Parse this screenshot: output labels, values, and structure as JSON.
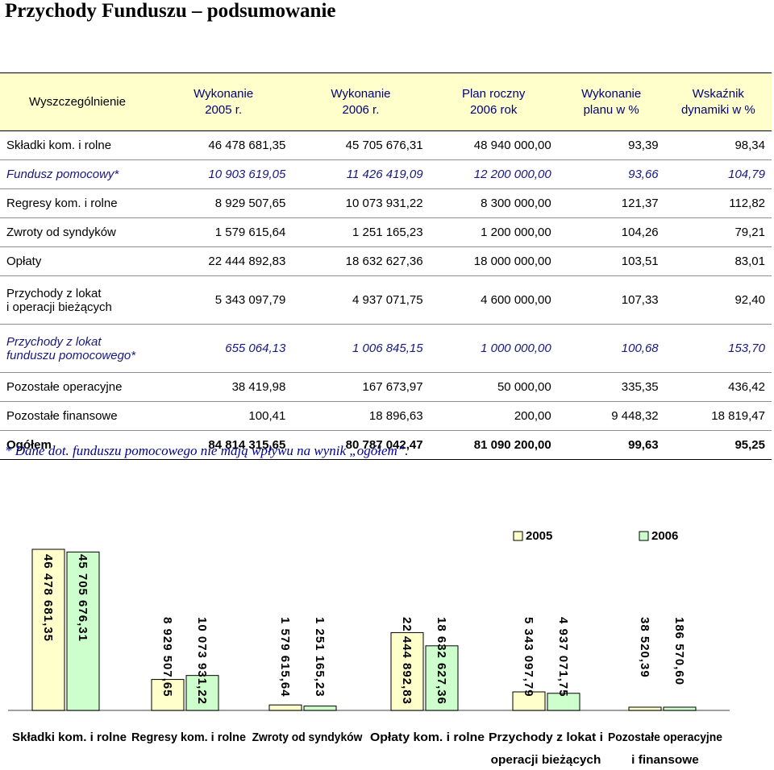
{
  "title": "Przychody Funduszu – podsumowanie",
  "table": {
    "headers": [
      "Wyszczególnienie",
      "Wykonanie\n2005 r.",
      "Wykonanie\n2006 r.",
      "Plan roczny\n2006 rok",
      "Wykonanie\nplanu w %",
      "Wskaźnik\ndynamiki w %"
    ],
    "rows": [
      {
        "label": "Składki kom. i rolne",
        "style": "normal",
        "values": [
          "46 478 681,35",
          "45 705 676,31",
          "48 940 000,00",
          "93,39",
          "98,34"
        ]
      },
      {
        "label": "Fundusz pomocowy*",
        "style": "italic",
        "values": [
          "10 903 619,05",
          "11 426 419,09",
          "12 200 000,00",
          "93,66",
          "104,79"
        ]
      },
      {
        "label": "Regresy kom. i rolne",
        "style": "normal",
        "values": [
          "8 929 507,65",
          "10 073 931,22",
          "8 300 000,00",
          "121,37",
          "112,82"
        ]
      },
      {
        "label": "Zwroty od syndyków",
        "style": "normal",
        "values": [
          "1 579 615,64",
          "1 251 165,23",
          "1 200 000,00",
          "104,26",
          "79,21"
        ]
      },
      {
        "label": "Opłaty",
        "style": "normal",
        "values": [
          "22 444 892,83",
          "18 632 627,36",
          "18 000 000,00",
          "103,51",
          "83,01"
        ]
      },
      {
        "label": "Przychody z lokat\ni operacji bieżących",
        "style": "normal",
        "values": [
          "5 343 097,79",
          "4 937 071,75",
          "4 600 000,00",
          "107,33",
          "92,40"
        ]
      },
      {
        "label": "Przychody z lokat\nfunduszu pomocowego*",
        "style": "italic",
        "values": [
          "655 064,13",
          "1 006 845,15",
          "1 000 000,00",
          "100,68",
          "153,70"
        ]
      },
      {
        "label": "Pozostałe operacyjne",
        "style": "normal",
        "values": [
          "38 419,98",
          "167 673,97",
          "50 000,00",
          "335,35",
          "436,42"
        ]
      },
      {
        "label": "Pozostałe finansowe",
        "style": "normal",
        "values": [
          "100,41",
          "18 896,63",
          "200,00",
          "9 448,32",
          "18 819,47"
        ]
      },
      {
        "label": "Ogółem",
        "style": "bold",
        "values": [
          "84 814 315,65",
          "80 787 042,47",
          "81 090 200,00",
          "99,63",
          "95,25"
        ]
      }
    ]
  },
  "footnote": "* Dane dot. funduszu pomocowego nie mają wpływu na wynik „ogółem”.",
  "chart_data": {
    "type": "bar",
    "categories": [
      "Składki kom. i rolne",
      "Regresy kom. i rolne",
      "Zwroty od syndyków",
      "Opłaty kom. i rolne",
      "Przychody z lokat i operacji bieżących",
      "Pozostałe operacyjne i finansowe"
    ],
    "category_lines": [
      [
        "Składki kom. i rolne",
        ""
      ],
      [
        "Regresy kom. i rolne",
        ""
      ],
      [
        "Zwroty od syndyków",
        ""
      ],
      [
        "Opłaty kom. i rolne",
        ""
      ],
      [
        "Przychody z lokat i",
        "operacji bieżących"
      ],
      [
        "Pozostałe operacyjne",
        "i finansowe"
      ]
    ],
    "series": [
      {
        "name": "2005",
        "color": "#ffffcc",
        "values": [
          46478681.35,
          8929507.65,
          1579615.64,
          22444892.83,
          5343097.79,
          38520.39
        ],
        "labels": [
          "46 478 681,35",
          "8 929 507,65",
          "1 579 615,64",
          "22 444 892,83",
          "5 343 097,79",
          "38 520,39"
        ]
      },
      {
        "name": "2006",
        "color": "#ccffcc",
        "values": [
          45705676.31,
          10073931.22,
          1251165.23,
          18632627.36,
          4937071.75,
          186570.6
        ],
        "labels": [
          "45 705 676,31",
          "10 073 931,22",
          "1 251 165,23",
          "18 632 627,36",
          "4 937 071,75",
          "186 570,60"
        ]
      }
    ],
    "ylim": [
      0,
      46478681.35
    ],
    "legend": "top-right",
    "grid": false
  }
}
